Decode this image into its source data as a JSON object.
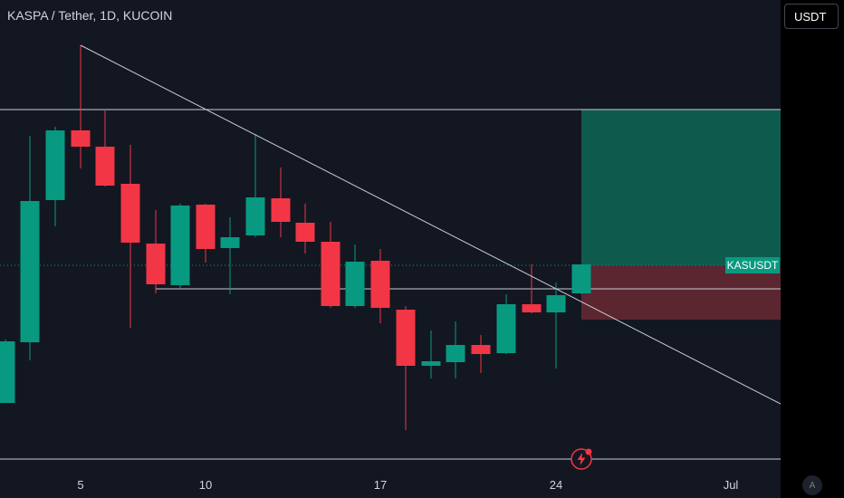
{
  "symbol": {
    "title": "KASPA / Tether, 1D, KUCOIN"
  },
  "currency_button": {
    "label": "USDT"
  },
  "price_label": {
    "text": "KASUSDT"
  },
  "auto_scale_button": {
    "label": "A"
  },
  "time_axis": {
    "ticks": [
      "5",
      "10",
      "17",
      "24",
      "Jul"
    ]
  },
  "icons": {
    "event": "lightning-event-icon"
  },
  "colors": {
    "background": "#131722",
    "up": "#089981",
    "down": "#f23645",
    "target_zone": "#0e5b4e",
    "stop_zone": "#5c2630",
    "trendline": "#c9ccd4"
  }
}
